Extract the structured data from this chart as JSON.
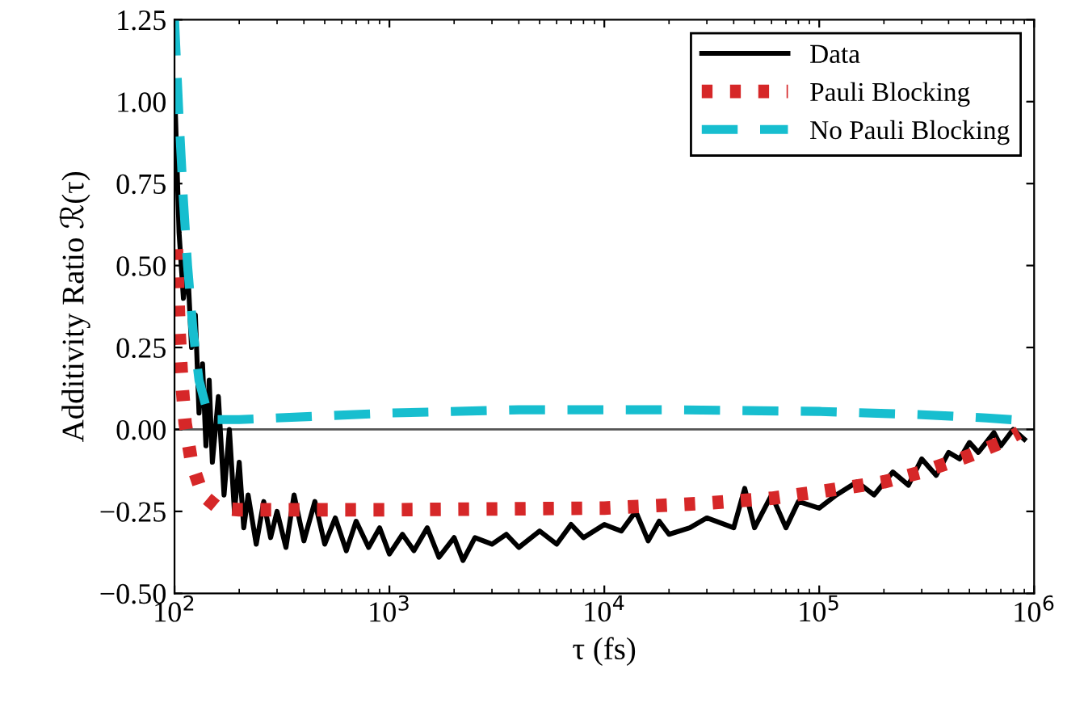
{
  "chart_data": {
    "type": "line",
    "xlabel": "τ (fs)",
    "ylabel": "Additivity Ratio ℛ(τ)",
    "log": "x",
    "xlim": [
      100,
      1000000
    ],
    "xticks": [
      {
        "value": 100,
        "label": "10$^{2}$"
      },
      {
        "value": 1000,
        "label": "10$^{3}$"
      },
      {
        "value": 10000,
        "label": "10$^{4}$"
      },
      {
        "value": 100000,
        "label": "10$^{5}$"
      },
      {
        "value": 1000000,
        "label": "10$^{6}$"
      }
    ],
    "ylim": [
      -0.5,
      1.25
    ],
    "yticks": [
      {
        "value": -0.5,
        "label": "−0.50"
      },
      {
        "value": -0.25,
        "label": "−0.25"
      },
      {
        "value": 0,
        "label": "0.00"
      },
      {
        "value": 0.25,
        "label": "0.25"
      },
      {
        "value": 0.5,
        "label": "0.50"
      },
      {
        "value": 0.75,
        "label": "0.75"
      },
      {
        "value": 1.0,
        "label": "1.00"
      },
      {
        "value": 1.25,
        "label": "1.25"
      }
    ],
    "grid": false,
    "legend": "top right",
    "marker": "none",
    "ref_lines": [
      {
        "axis": "y",
        "value": 0,
        "color": "#555555",
        "line_style": "solid"
      }
    ],
    "series": [
      {
        "name": "Data",
        "color": "#000000",
        "line_style": "solid",
        "x": [
          100,
          105,
          110,
          115,
          120,
          125,
          130,
          135,
          140,
          145,
          150,
          160,
          170,
          180,
          190,
          200,
          210,
          220,
          240,
          260,
          280,
          300,
          330,
          360,
          400,
          450,
          500,
          560,
          630,
          700,
          800,
          900,
          1000,
          1150,
          1300,
          1500,
          1700,
          2000,
          2200,
          2500,
          3000,
          3500,
          4000,
          5000,
          6000,
          7000,
          8000,
          10000,
          12000,
          14000,
          16000,
          18000,
          20000,
          25000,
          30000,
          40000,
          45000,
          50000,
          60000,
          70000,
          80000,
          100000,
          120000,
          150000,
          180000,
          220000,
          260000,
          300000,
          350000,
          400000,
          450000,
          500000,
          550000,
          650000,
          700000,
          800000,
          900000
        ],
        "values": [
          1.05,
          0.6,
          0.4,
          0.5,
          0.25,
          0.35,
          0.05,
          0.2,
          -0.05,
          0.15,
          -0.1,
          0.1,
          -0.2,
          0.0,
          -0.25,
          -0.1,
          -0.3,
          -0.2,
          -0.35,
          -0.22,
          -0.33,
          -0.25,
          -0.36,
          -0.2,
          -0.34,
          -0.22,
          -0.35,
          -0.27,
          -0.37,
          -0.28,
          -0.36,
          -0.3,
          -0.38,
          -0.32,
          -0.37,
          -0.3,
          -0.39,
          -0.33,
          -0.4,
          -0.33,
          -0.35,
          -0.32,
          -0.36,
          -0.31,
          -0.35,
          -0.29,
          -0.33,
          -0.29,
          -0.31,
          -0.25,
          -0.34,
          -0.28,
          -0.32,
          -0.3,
          -0.27,
          -0.3,
          -0.18,
          -0.3,
          -0.2,
          -0.3,
          -0.22,
          -0.24,
          -0.2,
          -0.16,
          -0.2,
          -0.13,
          -0.17,
          -0.09,
          -0.14,
          -0.07,
          -0.09,
          -0.04,
          -0.07,
          -0.01,
          -0.05,
          0.0,
          -0.03
        ]
      },
      {
        "name": "Pauli Blocking",
        "color": "#d62728",
        "line_style": "dotted",
        "x": [
          102,
          105,
          108,
          112,
          120,
          135,
          160,
          200,
          1000,
          10000,
          30000,
          60000,
          100000,
          200000,
          300000,
          500000,
          700000,
          850000
        ],
        "values": [
          0.55,
          0.3,
          0.15,
          0.02,
          -0.1,
          -0.2,
          -0.24,
          -0.245,
          -0.245,
          -0.24,
          -0.225,
          -0.21,
          -0.19,
          -0.16,
          -0.13,
          -0.08,
          -0.04,
          -0.01
        ]
      },
      {
        "name": "No Pauli Blocking",
        "color": "#17becf",
        "line_style": "dashed",
        "x": [
          100,
          105,
          110,
          115,
          122,
          130,
          140,
          150,
          200,
          1000,
          4000,
          20000,
          100000,
          300000,
          600000,
          1000000
        ],
        "values": [
          1.25,
          0.95,
          0.7,
          0.5,
          0.3,
          0.15,
          0.07,
          0.03,
          0.03,
          0.05,
          0.06,
          0.06,
          0.055,
          0.045,
          0.035,
          0.025
        ]
      }
    ]
  }
}
